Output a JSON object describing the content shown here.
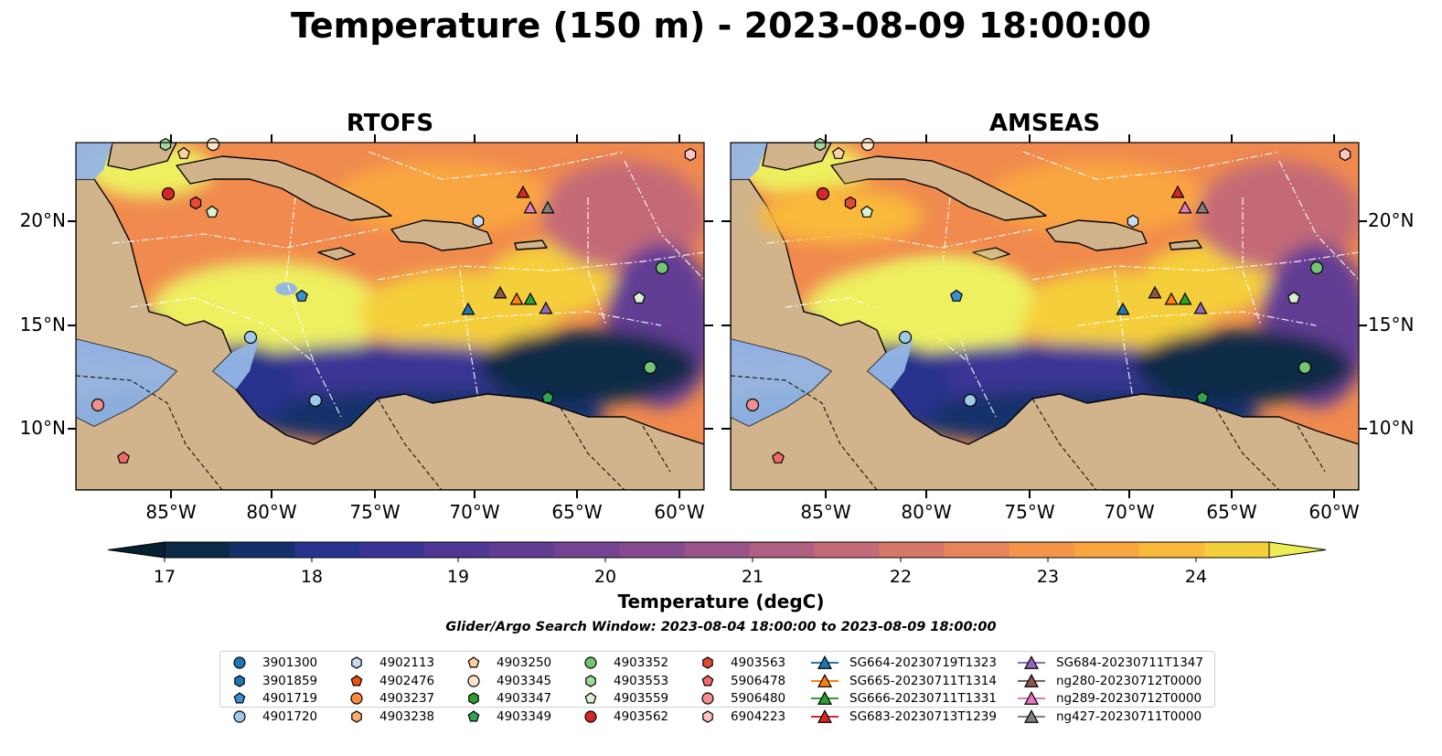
{
  "title": "Temperature (150 m) - 2023-08-09 18:00:00",
  "panels": [
    {
      "id": "rtofs",
      "title": "RTOFS"
    },
    {
      "id": "amseas",
      "title": "AMSEAS"
    }
  ],
  "axes": {
    "lon_ticks": [
      "85°W",
      "80°W",
      "75°W",
      "70°W",
      "65°W",
      "60°W"
    ],
    "lat_ticks": [
      "20°N",
      "15°N",
      "10°N"
    ]
  },
  "colorbar": {
    "label": "Temperature (degC)",
    "ticks": [
      "17",
      "18",
      "19",
      "20",
      "21",
      "22",
      "23",
      "24"
    ],
    "colors": [
      "#06202f",
      "#0a2a46",
      "#14306a",
      "#27338c",
      "#3b3495",
      "#503796",
      "#623d94",
      "#744393",
      "#864a8e",
      "#9a5389",
      "#b05e82",
      "#c46b77",
      "#d67768",
      "#e6855a",
      "#f3954b",
      "#f9a63f",
      "#f9b93a",
      "#f5cf3b",
      "#ecec55"
    ]
  },
  "search_window": "Glider/Argo Search Window: 2023-08-04 18:00:00 to 2023-08-09 18:00:00",
  "legend": [
    {
      "label": "3901300",
      "color": "#1f77b4",
      "marker": "circle"
    },
    {
      "label": "3901859",
      "color": "#1f77b4",
      "marker": "hexagon"
    },
    {
      "label": "4901719",
      "color": "#3a8fd0",
      "marker": "pentagon"
    },
    {
      "label": "4901720",
      "color": "#9ecae9",
      "marker": "circle"
    },
    {
      "label": "4902113",
      "color": "#c6dbef",
      "marker": "hexagon"
    },
    {
      "label": "4902476",
      "color": "#e6550d",
      "marker": "pentagon"
    },
    {
      "label": "4903237",
      "color": "#fd8d3c",
      "marker": "circle"
    },
    {
      "label": "4903238",
      "color": "#fdae6b",
      "marker": "hexagon"
    },
    {
      "label": "4903250",
      "color": "#fdd0a2",
      "marker": "pentagon"
    },
    {
      "label": "4903345",
      "color": "#fee6ce",
      "marker": "circle"
    },
    {
      "label": "4903347",
      "color": "#2ca02c",
      "marker": "hexagon"
    },
    {
      "label": "4903349",
      "color": "#31a354",
      "marker": "pentagon"
    },
    {
      "label": "4903352",
      "color": "#74c476",
      "marker": "circle"
    },
    {
      "label": "4903553",
      "color": "#a1d99b",
      "marker": "hexagon"
    },
    {
      "label": "4903559",
      "color": "#d9f0d3",
      "marker": "pentagon"
    },
    {
      "label": "4903562",
      "color": "#d62728",
      "marker": "circle"
    },
    {
      "label": "4903563",
      "color": "#e34a33",
      "marker": "hexagon"
    },
    {
      "label": "5906478",
      "color": "#f16a6a",
      "marker": "pentagon"
    },
    {
      "label": "5906480",
      "color": "#f28e8e",
      "marker": "circle"
    },
    {
      "label": "6904223",
      "color": "#fcc5c0",
      "marker": "hexagon"
    },
    {
      "label": "SG664-20230719T1323",
      "color": "#1f77b4",
      "marker": "triangle"
    },
    {
      "label": "SG665-20230711T1314",
      "color": "#ff7f0e",
      "marker": "triangle"
    },
    {
      "label": "SG666-20230711T1331",
      "color": "#2ca02c",
      "marker": "triangle"
    },
    {
      "label": "SG683-20230713T1239",
      "color": "#d62728",
      "marker": "triangle"
    },
    {
      "label": "SG684-20230711T1347",
      "color": "#9467bd",
      "marker": "triangle"
    },
    {
      "label": "ng280-20230712T0000",
      "color": "#8c564b",
      "marker": "triangle"
    },
    {
      "label": "ng289-20230712T0000",
      "color": "#e377c2",
      "marker": "triangle"
    },
    {
      "label": "ng427-20230711T0000",
      "color": "#7f7f7f",
      "marker": "triangle"
    }
  ]
}
